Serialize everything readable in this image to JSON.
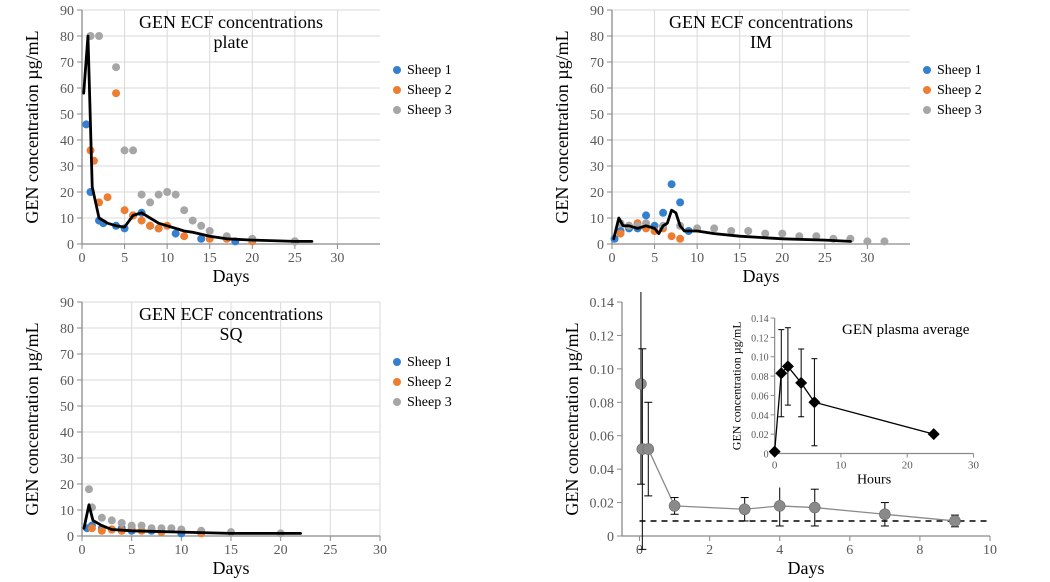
{
  "global": {
    "bg": "#ffffff",
    "axis_color": "#8a8a8a",
    "grid_color": "#d9d9d9",
    "tick_label_color": "#595959",
    "axis_label_color": "#000000",
    "line_color": "#000000",
    "font_family": "Palatino Linotype, Book Antiqua, Palatino, Georgia, serif",
    "tick_fontsize": 14,
    "axis_label_fontsize": 18,
    "title_fontsize": 18,
    "legend_fontsize": 14,
    "marker_radius": 4
  },
  "sheep_colors": {
    "s1": "#3480cf",
    "s2": "#ed7d31",
    "s3": "#a6a6a6"
  },
  "panel_plate": {
    "title1": "GEN ECF concentrations",
    "title2": "plate",
    "xlabel": "Days",
    "ylabel": "GEN concentration µg/mL",
    "xlim": [
      0,
      35
    ],
    "ylim": [
      0,
      90
    ],
    "xticks": [
      0,
      5,
      10,
      15,
      20,
      25,
      30
    ],
    "yticks": [
      0,
      10,
      20,
      30,
      40,
      50,
      60,
      70,
      80,
      90
    ],
    "xgrid": true,
    "ygrid": true,
    "line_x": [
      0.2,
      0.7,
      1.2,
      2,
      3,
      4,
      5,
      6,
      7,
      8,
      9,
      10,
      11,
      12,
      13,
      15,
      17,
      20,
      25,
      27
    ],
    "line_y": [
      58,
      80,
      22,
      10,
      8,
      7,
      6.5,
      11,
      12,
      10,
      8,
      7,
      6,
      5,
      4.5,
      3,
      2,
      1.5,
      1,
      1
    ],
    "scatter": {
      "s1": [
        [
          0.5,
          46
        ],
        [
          1,
          20
        ],
        [
          2,
          9
        ],
        [
          2.5,
          8
        ],
        [
          4,
          7
        ],
        [
          5,
          6
        ],
        [
          6,
          11
        ],
        [
          7,
          12
        ],
        [
          8,
          7
        ],
        [
          9,
          6
        ],
        [
          11,
          4
        ],
        [
          14,
          2
        ],
        [
          18,
          1
        ],
        [
          25,
          1
        ]
      ],
      "s2": [
        [
          1,
          36
        ],
        [
          1.4,
          32
        ],
        [
          2,
          16
        ],
        [
          3,
          18
        ],
        [
          4,
          58
        ],
        [
          5,
          13
        ],
        [
          6,
          11
        ],
        [
          7,
          9
        ],
        [
          8,
          7
        ],
        [
          9,
          6
        ],
        [
          10,
          7
        ],
        [
          12,
          3
        ],
        [
          15,
          2
        ],
        [
          17,
          2
        ],
        [
          20,
          1
        ],
        [
          25,
          1
        ]
      ],
      "s3": [
        [
          1,
          80
        ],
        [
          2,
          80
        ],
        [
          4,
          68
        ],
        [
          5,
          36
        ],
        [
          6,
          36
        ],
        [
          7,
          19
        ],
        [
          8,
          16
        ],
        [
          9,
          19
        ],
        [
          10,
          20
        ],
        [
          11,
          19
        ],
        [
          12,
          13
        ],
        [
          13,
          9
        ],
        [
          14,
          7
        ],
        [
          15,
          5
        ],
        [
          17,
          3
        ],
        [
          20,
          2
        ],
        [
          25,
          1
        ]
      ]
    },
    "legend_items": [
      {
        "label": "Sheep 1",
        "color": "#3480cf"
      },
      {
        "label": "Sheep 2",
        "color": "#ed7d31"
      },
      {
        "label": "Sheep 3",
        "color": "#a6a6a6"
      }
    ]
  },
  "panel_im": {
    "title1": "GEN ECF concentrations",
    "title2": "IM",
    "xlabel": "Days",
    "ylabel": "GEN concentration µg/mL",
    "xlim": [
      0,
      35
    ],
    "ylim": [
      0,
      90
    ],
    "xticks": [
      0,
      5,
      10,
      15,
      20,
      25,
      30
    ],
    "yticks": [
      0,
      10,
      20,
      30,
      40,
      50,
      60,
      70,
      80,
      90
    ],
    "xgrid": true,
    "ygrid": true,
    "line_x": [
      0.2,
      0.8,
      1.3,
      2,
      3,
      4,
      5,
      5.5,
      6,
      6.5,
      7,
      7.5,
      8,
      8.5,
      9,
      10,
      12,
      15,
      20,
      25,
      28
    ],
    "line_y": [
      2,
      10,
      7,
      7,
      6,
      7,
      6,
      4,
      7,
      8,
      13,
      12,
      7,
      5,
      5,
      5,
      4,
      3,
      2,
      1.5,
      1
    ],
    "scatter": {
      "s1": [
        [
          0.3,
          2
        ],
        [
          1,
          5
        ],
        [
          2,
          6
        ],
        [
          3,
          6
        ],
        [
          4,
          11
        ],
        [
          5,
          7
        ],
        [
          6,
          12
        ],
        [
          7,
          23
        ],
        [
          8,
          16
        ],
        [
          9,
          5
        ]
      ],
      "s2": [
        [
          1,
          4
        ],
        [
          2,
          7
        ],
        [
          3,
          8
        ],
        [
          4,
          6
        ],
        [
          5,
          5
        ],
        [
          6,
          6
        ],
        [
          7,
          3
        ],
        [
          8,
          2
        ]
      ],
      "s3": [
        [
          1,
          8
        ],
        [
          2,
          7
        ],
        [
          3,
          7
        ],
        [
          4,
          8
        ],
        [
          6,
          7
        ],
        [
          8,
          7
        ],
        [
          10,
          6
        ],
        [
          12,
          6
        ],
        [
          14,
          5
        ],
        [
          16,
          5
        ],
        [
          18,
          4
        ],
        [
          20,
          4
        ],
        [
          22,
          3
        ],
        [
          24,
          3
        ],
        [
          26,
          2
        ],
        [
          28,
          2
        ],
        [
          30,
          1
        ],
        [
          32,
          1
        ]
      ]
    },
    "legend_items": [
      {
        "label": "Sheep 1",
        "color": "#3480cf"
      },
      {
        "label": "Sheep 2",
        "color": "#ed7d31"
      },
      {
        "label": "Sheep 3",
        "color": "#a6a6a6"
      }
    ]
  },
  "panel_sq": {
    "title1": "GEN ECF concentrations",
    "title2": "SQ",
    "xlabel": "Days",
    "ylabel": "GEN concentration µg/mL",
    "xlim": [
      0,
      30
    ],
    "ylim": [
      0,
      90
    ],
    "xticks": [
      0,
      5,
      10,
      15,
      20,
      25,
      30
    ],
    "yticks": [
      0,
      10,
      20,
      30,
      40,
      50,
      60,
      70,
      80,
      90
    ],
    "xgrid": true,
    "ygrid": true,
    "line_x": [
      0.2,
      0.7,
      1.1,
      2,
      3,
      5,
      7,
      10,
      15,
      20,
      22
    ],
    "line_y": [
      3,
      12,
      6,
      4,
      2.5,
      2,
      1.8,
      1.5,
      1,
      1,
      1
    ],
    "scatter": {
      "s1": [
        [
          0.5,
          3
        ],
        [
          1,
          4
        ],
        [
          2,
          3
        ],
        [
          3,
          2.5
        ],
        [
          4,
          3
        ],
        [
          5,
          2
        ],
        [
          7,
          2
        ],
        [
          10,
          1
        ]
      ],
      "s2": [
        [
          1,
          3
        ],
        [
          2,
          2
        ],
        [
          3,
          2.5
        ],
        [
          4,
          2
        ],
        [
          5,
          3
        ],
        [
          6,
          2
        ],
        [
          8,
          1.5
        ],
        [
          12,
          1
        ]
      ],
      "s3": [
        [
          0.7,
          18
        ],
        [
          1,
          11
        ],
        [
          2,
          7
        ],
        [
          3,
          6
        ],
        [
          4,
          5
        ],
        [
          5,
          4
        ],
        [
          6,
          4
        ],
        [
          7,
          3
        ],
        [
          8,
          3
        ],
        [
          9,
          3
        ],
        [
          10,
          2.5
        ],
        [
          12,
          2
        ],
        [
          15,
          1.5
        ],
        [
          20,
          1
        ]
      ]
    },
    "legend_items": [
      {
        "label": "Sheep 1",
        "color": "#3480cf"
      },
      {
        "label": "Sheep 2",
        "color": "#ed7d31"
      },
      {
        "label": "Sheep 3",
        "color": "#a6a6a6"
      }
    ]
  },
  "panel_plasma": {
    "xlabel": "Days",
    "ylabel": "GEN concentration µg/mL",
    "xlim": [
      -0.5,
      10
    ],
    "ylim": [
      0,
      0.14
    ],
    "xticks": [
      0,
      2,
      4,
      6,
      8,
      10
    ],
    "yticks": [
      0,
      0.02,
      0.04,
      0.06,
      0.08,
      0.1,
      0.12,
      0.14
    ],
    "xgrid": false,
    "ygrid": false,
    "main_series": {
      "color": "#8a8a8a",
      "marker_radius": 5.5,
      "line_width": 1.3,
      "x": [
        0.04,
        0.08,
        0.25,
        1,
        3,
        4,
        5,
        7,
        9
      ],
      "y": [
        0.091,
        0.052,
        0.052,
        0.018,
        0.016,
        0.018,
        0.017,
        0.013,
        0.009
      ],
      "err": [
        0.06,
        0.06,
        0.028,
        0.005,
        0.007,
        0.012,
        0.011,
        0.007,
        0.0035
      ]
    },
    "hline": {
      "dash": [
        6,
        5
      ],
      "color": "#000000",
      "y": 0.009,
      "width": 1.5
    },
    "inset": {
      "title": "GEN plasma average",
      "xlabel": "Hours",
      "ylabel": "GEN concentration µg/mL",
      "xlim": [
        0,
        30
      ],
      "ylim": [
        0,
        0.14
      ],
      "xticks": [
        0,
        10,
        20,
        30
      ],
      "yticks": [
        0,
        0.02,
        0.04,
        0.06,
        0.08,
        0.1,
        0.12,
        0.14
      ],
      "color": "#000000",
      "marker": "diamond",
      "marker_size": 6,
      "line_width": 1.3,
      "x": [
        0,
        1,
        2,
        4,
        6,
        24
      ],
      "y": [
        0.002,
        0.083,
        0.09,
        0.073,
        0.053,
        0.02
      ],
      "err": [
        0,
        0.045,
        0.04,
        0.035,
        0.045,
        0
      ]
    }
  }
}
